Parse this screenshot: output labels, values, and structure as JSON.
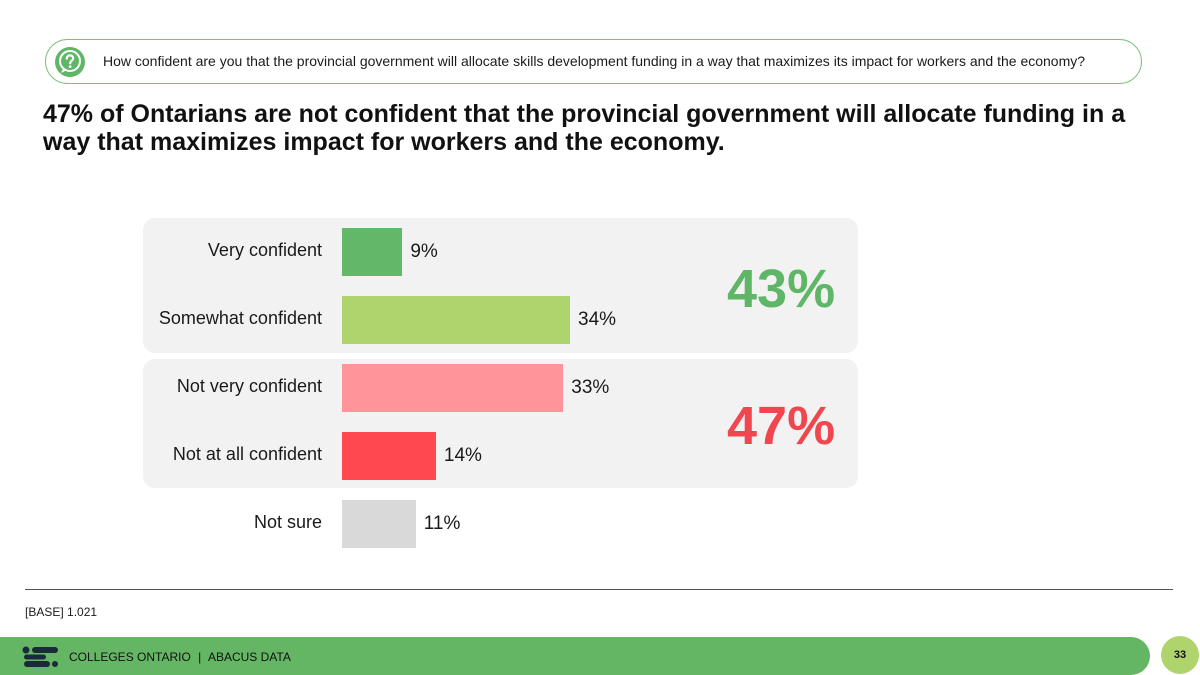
{
  "question": {
    "icon": "question-bubble-icon",
    "text": "How confident are you that the provincial government will allocate skills development funding in a way that maximizes its impact for workers and the economy?"
  },
  "headline": "47% of Ontarians are not confident that the provincial government will allocate funding in a way that maximizes impact for workers and the economy.",
  "chart_data": {
    "type": "bar",
    "orientation": "horizontal",
    "categories": [
      "Very confident",
      "Somewhat confident",
      "Not very confident",
      "Not at all confident",
      "Not sure"
    ],
    "values": [
      9,
      34,
      33,
      14,
      11
    ],
    "value_labels": [
      "9%",
      "34%",
      "33%",
      "14%",
      "11%"
    ],
    "colors": [
      "#63b769",
      "#b0d46d",
      "#ff959a",
      "#ff4850",
      "#d9d9d9"
    ],
    "xlim": [
      0,
      50
    ],
    "groups": [
      {
        "name": "confident",
        "categories": [
          "Very confident",
          "Somewhat confident"
        ],
        "net_label": "43%",
        "color": "#5fb667"
      },
      {
        "name": "not confident",
        "categories": [
          "Not very confident",
          "Not at all confident"
        ],
        "net_label": "47%",
        "color": "#f0474f"
      }
    ]
  },
  "footer": {
    "base": "[BASE] 1.021",
    "org": "COLLEGES ONTARIO",
    "separator": "|",
    "partner": "ABACUS DATA",
    "page_number": "33",
    "band_color": "#64b665",
    "badge_color": "#afd46c"
  }
}
